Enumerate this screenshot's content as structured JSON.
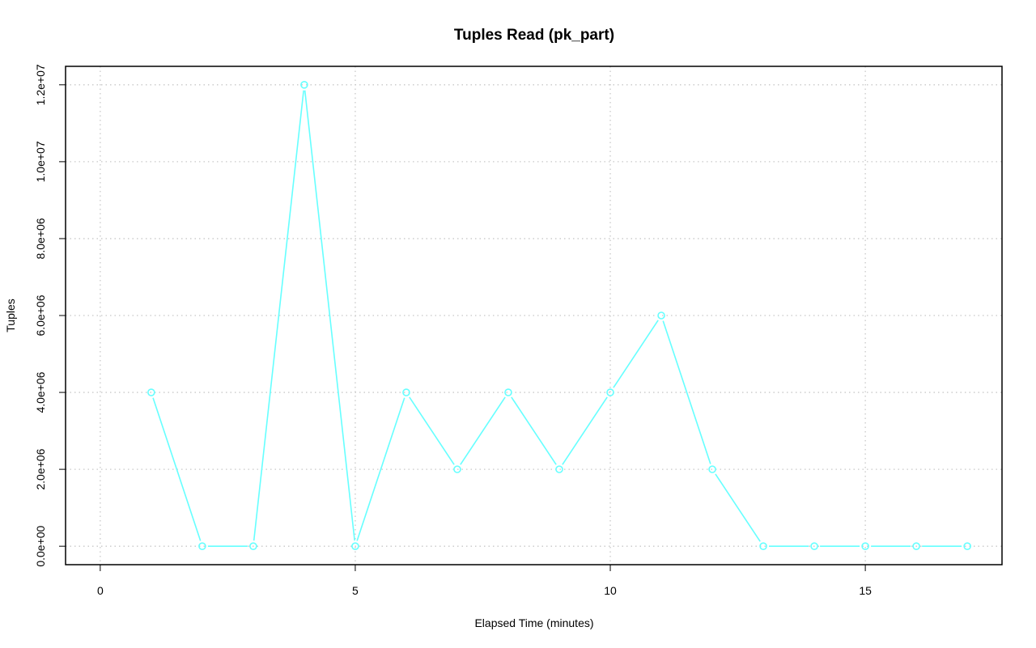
{
  "chart_data": {
    "type": "line",
    "title": "Tuples Read (pk_part)",
    "xlabel": "Elapsed Time (minutes)",
    "ylabel": "Tuples",
    "xlim": [
      -0.68,
      17.68
    ],
    "ylim": [
      -480000,
      12480000
    ],
    "x_ticks": [
      0,
      5,
      10,
      15
    ],
    "x_tick_labels": [
      "0",
      "5",
      "10",
      "15"
    ],
    "y_ticks": [
      0,
      2000000,
      4000000,
      6000000,
      8000000,
      10000000,
      12000000
    ],
    "y_tick_labels": [
      "0.0e+00",
      "2.0e+06",
      "4.0e+06",
      "6.0e+06",
      "8.0e+06",
      "1.0e+07",
      "1.2e+07"
    ],
    "grid": true,
    "grid_style": "dotted",
    "series": [
      {
        "color": "#66ffff",
        "markers": "open-circle",
        "x": [
          1,
          2,
          3,
          4,
          5,
          6,
          7,
          8,
          9,
          10,
          11,
          12,
          13,
          14,
          15,
          16,
          17
        ],
        "values": [
          4000000,
          0,
          0,
          12000000,
          0,
          4000000,
          2000000,
          4000000,
          2000000,
          4000000,
          6000000,
          2000000,
          0,
          0,
          0,
          0,
          0
        ]
      }
    ]
  }
}
